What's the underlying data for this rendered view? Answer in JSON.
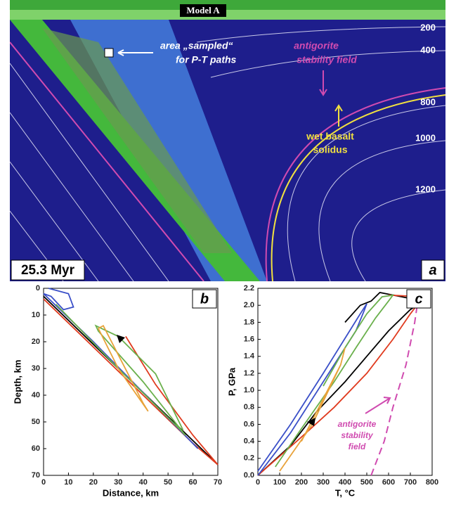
{
  "panel_a": {
    "title": "Model A",
    "sample_label": [
      "area „sampled“",
      "for P-T paths"
    ],
    "antigorite_label": [
      "antigorite",
      "stability field"
    ],
    "solidus_label": [
      "wet basalt",
      "solidus"
    ],
    "isotherm_labels": [
      200,
      400,
      800,
      1000,
      1200
    ],
    "time_label": "25.3 Myr",
    "panel_label": "a"
  },
  "chart_data": [
    {
      "type": "line",
      "panel_label": "b",
      "x_label": "Distance, km",
      "y_label": "Depth, km",
      "xlim": [
        0,
        70
      ],
      "xticks": [
        0,
        10,
        20,
        30,
        40,
        50,
        60,
        70
      ],
      "ylim": [
        70,
        0
      ],
      "yticks": [
        0,
        10,
        20,
        30,
        40,
        50,
        60,
        70
      ],
      "series": [
        {
          "color": "#000000",
          "x": [
            0,
            20,
            40,
            60,
            70
          ],
          "values": [
            3,
            21,
            39,
            57,
            66
          ]
        },
        {
          "color": "#e03a1e",
          "x": [
            0,
            20,
            40,
            60,
            70,
            60,
            45,
            33
          ],
          "values": [
            4,
            22,
            40,
            58,
            66,
            55,
            36,
            18
          ]
        },
        {
          "color": "#3a4fc8",
          "x": [
            2,
            10,
            12,
            8,
            3,
            0,
            20,
            40,
            62
          ],
          "values": [
            0,
            2,
            7,
            8,
            3,
            2,
            20,
            39,
            60
          ]
        },
        {
          "color": "#6ab04c",
          "x": [
            5,
            30,
            55,
            57,
            40,
            22,
            21,
            30,
            45,
            56
          ],
          "values": [
            6,
            30,
            53,
            55,
            35,
            16,
            14,
            18,
            32,
            53
          ]
        },
        {
          "color": "#e8a23a",
          "x": [
            22,
            24,
            40,
            42,
            30,
            22
          ],
          "values": [
            15,
            14,
            43,
            46,
            30,
            15
          ]
        }
      ]
    },
    {
      "type": "line",
      "panel_label": "c",
      "x_label": "T, °C",
      "y_label": "P, GPa",
      "xlim": [
        0,
        800
      ],
      "xticks": [
        0,
        100,
        200,
        300,
        400,
        500,
        600,
        700,
        800
      ],
      "ylim": [
        0,
        2.2
      ],
      "yticks": [
        {
          "value": 0,
          "label": "0.0"
        },
        0.2,
        0.4,
        0.6,
        0.8,
        {
          "value": 1,
          "label": "1.0"
        },
        1.2,
        1.4,
        1.6,
        1.8,
        {
          "value": 2,
          "label": "2.0"
        },
        2.2
      ],
      "annotation": [
        "antigorite",
        "stability",
        "field"
      ],
      "series": [
        {
          "color": "#000000",
          "x": [
            0,
            150,
            270,
            400,
            500,
            600,
            700,
            790,
            700,
            560,
            520,
            470,
            400
          ],
          "values": [
            0,
            0.35,
            0.75,
            1.1,
            1.4,
            1.7,
            1.95,
            2.1,
            2.08,
            2.15,
            2.05,
            2,
            1.8
          ]
        },
        {
          "color": "#e03a1e",
          "x": [
            0,
            200,
            350,
            500,
            620,
            700,
            760,
            600
          ],
          "values": [
            0,
            0.45,
            0.8,
            1.2,
            1.6,
            1.9,
            2.1,
            2.12
          ]
        },
        {
          "color": "#3a4fc8",
          "x": [
            0,
            150,
            300,
            450,
            490,
            500,
            470,
            300,
            150,
            0
          ],
          "values": [
            0,
            0.5,
            1.1,
            1.7,
            1.95,
            2.02,
            1.9,
            1.2,
            0.6,
            0.05
          ]
        },
        {
          "color": "#6ab04c",
          "x": [
            80,
            200,
            350,
            450,
            540,
            600,
            620,
            570,
            500,
            400,
            300
          ],
          "values": [
            0.1,
            0.55,
            1.1,
            1.5,
            1.85,
            2.05,
            2.12,
            2.1,
            1.9,
            1.5,
            1.05
          ]
        },
        {
          "color": "#e8a23a",
          "x": [
            100,
            250,
            380,
            400,
            380,
            300,
            200
          ],
          "values": [
            0.05,
            0.6,
            1.3,
            1.5,
            1.3,
            0.9,
            0.4
          ]
        },
        {
          "color": "#d04bb0",
          "dashed": true,
          "x": [
            520,
            580,
            620,
            680,
            720,
            740
          ],
          "values": [
            0,
            0.4,
            0.8,
            1.3,
            1.8,
            2.15
          ]
        }
      ]
    }
  ]
}
